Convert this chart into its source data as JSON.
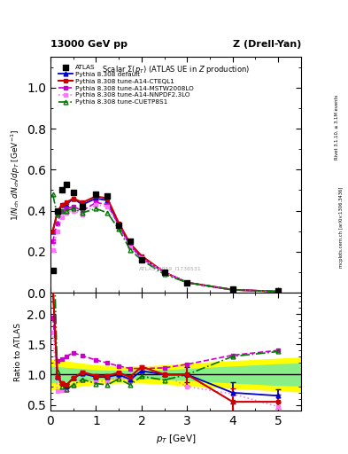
{
  "title_top_left": "13000 GeV pp",
  "title_top_right": "Z (Drell-Yan)",
  "plot_title": "Scalar Σ(p_T) (ATLAS UE in Z production)",
  "ylabel_main": "1/N_{ch} dN_{ch}/dp_{T} [GeV^{-1}]",
  "ylabel_ratio": "Ratio to ATLAS",
  "xlabel": "p_{T} [GeV]",
  "watermark": "ATLAS_2019_I1736531",
  "rivet_label": "Rivet 3.1.10, ≥ 3.1M events",
  "arxiv_label": "mcplots.cern.ch [arXiv:1306.3436]",
  "atlas_x": [
    0.05,
    0.15,
    0.25,
    0.35,
    0.5,
    0.7,
    1.0,
    1.25,
    1.5,
    1.75,
    2.0,
    2.5,
    3.0,
    4.0,
    5.0
  ],
  "atlas_y": [
    0.11,
    0.4,
    0.5,
    0.53,
    0.49,
    0.42,
    0.48,
    0.47,
    0.33,
    0.25,
    0.16,
    0.1,
    0.05,
    0.02,
    0.01
  ],
  "py_x": [
    0.05,
    0.15,
    0.25,
    0.35,
    0.5,
    0.7,
    1.0,
    1.25,
    1.5,
    1.75,
    2.0,
    2.5,
    3.0,
    4.0,
    5.0
  ],
  "default_y": [
    0.3,
    0.39,
    0.43,
    0.43,
    0.46,
    0.43,
    0.46,
    0.45,
    0.33,
    0.23,
    0.17,
    0.1,
    0.05,
    0.015,
    0.006
  ],
  "cteql1_y": [
    0.3,
    0.39,
    0.43,
    0.44,
    0.46,
    0.44,
    0.47,
    0.46,
    0.34,
    0.24,
    0.18,
    0.1,
    0.05,
    0.015,
    0.006
  ],
  "mstw_y": [
    0.25,
    0.34,
    0.4,
    0.41,
    0.42,
    0.4,
    0.44,
    0.43,
    0.33,
    0.23,
    0.17,
    0.1,
    0.05,
    0.015,
    0.006
  ],
  "nnpdf_y": [
    0.21,
    0.3,
    0.37,
    0.39,
    0.4,
    0.38,
    0.43,
    0.42,
    0.32,
    0.22,
    0.17,
    0.1,
    0.05,
    0.015,
    0.006
  ],
  "cuetp_y": [
    0.48,
    0.38,
    0.4,
    0.4,
    0.41,
    0.39,
    0.41,
    0.39,
    0.31,
    0.21,
    0.16,
    0.09,
    0.05,
    0.015,
    0.006
  ],
  "ratio_default": [
    2.5,
    0.96,
    0.86,
    0.82,
    0.94,
    1.02,
    0.96,
    0.96,
    1.0,
    0.92,
    1.06,
    1.0,
    1.0,
    0.7,
    0.65
  ],
  "ratio_cteql1": [
    2.5,
    0.96,
    0.86,
    0.83,
    0.94,
    1.04,
    0.98,
    0.98,
    1.03,
    0.96,
    1.13,
    1.0,
    1.0,
    0.55,
    0.55
  ],
  "ratio_mstw": [
    1.95,
    1.22,
    1.25,
    1.3,
    1.36,
    1.31,
    1.24,
    1.19,
    1.14,
    1.1,
    1.1,
    1.11,
    1.17,
    1.32,
    1.4
  ],
  "ratio_nnpdf": [
    1.7,
    0.73,
    0.74,
    0.74,
    0.82,
    0.9,
    0.89,
    0.89,
    0.97,
    0.89,
    1.06,
    1.0,
    0.8,
    0.68,
    0.47
  ],
  "ratio_cuetp": [
    3.8,
    1.05,
    0.8,
    0.75,
    0.83,
    0.92,
    0.85,
    0.83,
    0.93,
    0.83,
    0.97,
    0.91,
    1.0,
    1.3,
    1.38
  ],
  "band_x": [
    0.0,
    0.5,
    1.0,
    1.5,
    2.0,
    2.5,
    3.0,
    3.5,
    4.0,
    4.5,
    5.0,
    5.5
  ],
  "band_yellow_lo": [
    0.75,
    0.8,
    0.85,
    0.87,
    0.87,
    0.85,
    0.82,
    0.8,
    0.78,
    0.76,
    0.74,
    0.72
  ],
  "band_yellow_hi": [
    1.25,
    1.2,
    1.15,
    1.13,
    1.13,
    1.15,
    1.18,
    1.2,
    1.22,
    1.24,
    1.26,
    1.28
  ],
  "band_green_lo": [
    0.87,
    0.9,
    0.93,
    0.94,
    0.94,
    0.93,
    0.91,
    0.89,
    0.87,
    0.85,
    0.83,
    0.82
  ],
  "band_green_hi": [
    1.13,
    1.1,
    1.07,
    1.06,
    1.06,
    1.07,
    1.09,
    1.11,
    1.13,
    1.15,
    1.17,
    1.18
  ],
  "color_default": "#0000cc",
  "color_cteql1": "#cc0000",
  "color_mstw": "#cc00cc",
  "color_nnpdf": "#ff77ff",
  "color_cuetp": "#007700",
  "xlim": [
    0.0,
    5.5
  ],
  "ylim_main": [
    0.0,
    1.15
  ],
  "ylim_ratio": [
    0.4,
    2.35
  ]
}
